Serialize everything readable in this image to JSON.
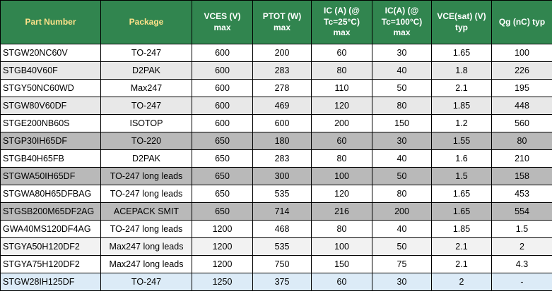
{
  "title": "IGBT part number comparison table",
  "colors": {
    "header_bg": "#31854F",
    "header_text_white": "#FFFFFF",
    "header_text_yellow": "#FFE28A",
    "border": "#000000",
    "body_text": "#000000",
    "row_white": "#FFFFFF",
    "row_light_gray": "#E8E8E8",
    "row_medium_gray": "#B9B9B9",
    "row_lighter_gray": "#F2F2F2",
    "row_blue": "#DCEBF7"
  },
  "chart_data": {
    "type": "table",
    "columns": [
      {
        "label": "Part Number",
        "text_color": "yellow"
      },
      {
        "label": "Package",
        "text_color": "yellow"
      },
      {
        "label": "VCES (V)\nmax",
        "text_color": "white"
      },
      {
        "label": "PTOT (W)\nmax",
        "text_color": "white"
      },
      {
        "label": "IC (A) (@\nTc=25°C)\nmax",
        "text_color": "white"
      },
      {
        "label": "IC(A) (@\nTc=100°C)\nmax",
        "text_color": "white"
      },
      {
        "label": "VCE(sat) (V)\ntyp",
        "text_color": "white"
      },
      {
        "label": "Qg (nC) typ",
        "text_color": "white"
      }
    ],
    "rows": [
      {
        "bg": "white",
        "cells": [
          "STGW20NC60V",
          "TO-247",
          "600",
          "200",
          "60",
          "30",
          "1.65",
          "100"
        ]
      },
      {
        "bg": "light_gray",
        "cells": [
          "STGB40V60F",
          "D2PAK",
          "600",
          "283",
          "80",
          "40",
          "1.8",
          "226"
        ]
      },
      {
        "bg": "white",
        "cells": [
          "STGY50NC60WD",
          "Max247",
          "600",
          "278",
          "110",
          "50",
          "2.1",
          "195"
        ]
      },
      {
        "bg": "light_gray",
        "cells": [
          "STGW80V60DF",
          "TO-247",
          "600",
          "469",
          "120",
          "80",
          "1.85",
          "448"
        ]
      },
      {
        "bg": "white",
        "cells": [
          "STGE200NB60S",
          "ISOTOP",
          "600",
          "600",
          "200",
          "150",
          "1.2",
          "560"
        ]
      },
      {
        "bg": "medium_gray",
        "cells": [
          "STGP30IH65DF",
          "TO-220",
          "650",
          "180",
          "60",
          "30",
          "1.55",
          "80"
        ]
      },
      {
        "bg": "white",
        "cells": [
          "STGB40H65FB",
          "D2PAK",
          "650",
          "283",
          "80",
          "40",
          "1.6",
          "210"
        ]
      },
      {
        "bg": "medium_gray",
        "cells": [
          "STGWA50IH65DF",
          "TO-247 long leads",
          "650",
          "300",
          "100",
          "50",
          "1.5",
          "158"
        ]
      },
      {
        "bg": "white",
        "cells": [
          "STGWA80H65DFBAG",
          "TO-247 long leads",
          "650",
          "535",
          "120",
          "80",
          "1.65",
          "453"
        ]
      },
      {
        "bg": "medium_gray",
        "cells": [
          "STGSB200M65DF2AG",
          "ACEPACK SMIT",
          "650",
          "714",
          "216",
          "200",
          "1.65",
          "554"
        ]
      },
      {
        "bg": "white",
        "cells": [
          "GWA40MS120DF4AG",
          "TO-247 long leads",
          "1200",
          "468",
          "80",
          "40",
          "1.85",
          "1.5"
        ]
      },
      {
        "bg": "lighter_gray",
        "cells": [
          "STGYA50H120DF2",
          "Max247 long leads",
          "1200",
          "535",
          "100",
          "50",
          "2.1",
          "2"
        ]
      },
      {
        "bg": "white",
        "cells": [
          "STGYA75H120DF2",
          "Max247 long leads",
          "1200",
          "750",
          "150",
          "75",
          "2.1",
          "4.3"
        ]
      },
      {
        "bg": "blue",
        "cells": [
          "STGW28IH125DF",
          "TO-247",
          "1250",
          "375",
          "60",
          "30",
          "2",
          "-"
        ]
      }
    ]
  }
}
